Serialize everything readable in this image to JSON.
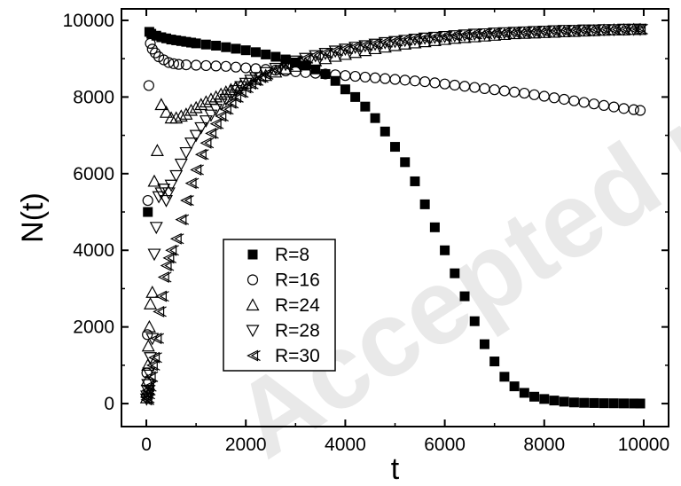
{
  "chart_data": {
    "type": "scatter",
    "xlabel": "t",
    "ylabel": "N(t)",
    "xlim": [
      -500,
      10500
    ],
    "ylim": [
      -600,
      10300
    ],
    "xticks": [
      0,
      2000,
      4000,
      6000,
      8000,
      10000
    ],
    "yticks": [
      0,
      2000,
      4000,
      6000,
      8000,
      10000
    ],
    "xtick_labels": [
      "0",
      "2000",
      "4000",
      "6000",
      "8000",
      "10000"
    ],
    "ytick_labels": [
      "0",
      "2000",
      "4000",
      "6000",
      "8000",
      "10000"
    ],
    "legend_position": "lower-left-center",
    "watermark": "Accepted manuscript",
    "series": [
      {
        "name": "R=8",
        "marker": "square-filled",
        "x": [
          30,
          60,
          100,
          200,
          300,
          400,
          500,
          600,
          700,
          800,
          900,
          1000,
          1200,
          1400,
          1600,
          1800,
          2000,
          2200,
          2400,
          2600,
          2800,
          3000,
          3200,
          3400,
          3600,
          3800,
          4000,
          4200,
          4400,
          4600,
          4800,
          5000,
          5200,
          5400,
          5600,
          5800,
          6000,
          6200,
          6400,
          6600,
          6800,
          7000,
          7200,
          7400,
          7600,
          7800,
          8000,
          8200,
          8400,
          8600,
          8800,
          9000,
          9200,
          9400,
          9600,
          9800,
          9930
        ],
        "y": [
          5000,
          9700,
          9650,
          9600,
          9560,
          9530,
          9500,
          9480,
          9460,
          9440,
          9420,
          9400,
          9370,
          9340,
          9300,
          9260,
          9220,
          9170,
          9110,
          9050,
          8980,
          8900,
          8820,
          8720,
          8600,
          8420,
          8200,
          8000,
          7750,
          7450,
          7100,
          6700,
          6300,
          5800,
          5200,
          4600,
          4000,
          3400,
          2800,
          2150,
          1550,
          1100,
          700,
          450,
          280,
          180,
          120,
          80,
          50,
          30,
          20,
          15,
          10,
          8,
          5,
          3,
          2
        ]
      },
      {
        "name": "R=16",
        "marker": "circle-open",
        "x": [
          10,
          20,
          30,
          50,
          80,
          120,
          180,
          250,
          350,
          450,
          550,
          650,
          800,
          1000,
          1200,
          1400,
          1600,
          1800,
          2000,
          2200,
          2400,
          2600,
          2800,
          3000,
          3200,
          3400,
          3600,
          3800,
          4000,
          4200,
          4400,
          4600,
          4800,
          5000,
          5200,
          5400,
          5600,
          5800,
          6000,
          6200,
          6400,
          6600,
          6800,
          7000,
          7200,
          7400,
          7600,
          7800,
          8000,
          8200,
          8400,
          8600,
          8800,
          9000,
          9200,
          9400,
          9600,
          9800,
          9930
        ],
        "y": [
          800,
          1800,
          5300,
          8300,
          9400,
          9250,
          9150,
          9050,
          8970,
          8900,
          8870,
          8850,
          8840,
          8830,
          8820,
          8810,
          8800,
          8780,
          8760,
          8740,
          8720,
          8700,
          8680,
          8660,
          8640,
          8620,
          8600,
          8580,
          8560,
          8540,
          8520,
          8500,
          8480,
          8460,
          8440,
          8420,
          8400,
          8370,
          8340,
          8310,
          8280,
          8250,
          8220,
          8190,
          8160,
          8130,
          8100,
          8060,
          8020,
          7980,
          7940,
          7900,
          7860,
          7820,
          7780,
          7740,
          7700,
          7670,
          7650
        ]
      },
      {
        "name": "R=24",
        "marker": "triangle-up-open",
        "x": [
          5,
          10,
          20,
          30,
          40,
          60,
          80,
          120,
          160,
          220,
          300,
          400,
          500,
          600,
          700,
          800,
          900,
          1000,
          1100,
          1200,
          1300,
          1400,
          1500,
          1600,
          1700,
          1800,
          1900,
          2000,
          2200,
          2400,
          2600,
          2800,
          3000,
          3200,
          3400,
          3600,
          3800,
          4000,
          4200,
          4400,
          4600,
          4800,
          5000,
          5200,
          5400,
          5600,
          5800,
          6000,
          6200,
          6400,
          6600,
          6800,
          7000,
          7200,
          7400,
          7600,
          7800,
          8000,
          8200,
          8400,
          8600,
          8800,
          9000,
          9200,
          9400,
          9600,
          9800,
          9930
        ],
        "y": [
          150,
          300,
          600,
          1000,
          1500,
          2000,
          2600,
          2900,
          5800,
          6600,
          7800,
          7600,
          7450,
          7450,
          7500,
          7550,
          7650,
          7720,
          7800,
          7870,
          7940,
          8000,
          8070,
          8130,
          8190,
          8250,
          8300,
          8360,
          8460,
          8560,
          8650,
          8730,
          8800,
          8870,
          8940,
          9000,
          9060,
          9110,
          9160,
          9210,
          9260,
          9300,
          9340,
          9380,
          9410,
          9440,
          9470,
          9500,
          9530,
          9550,
          9570,
          9590,
          9610,
          9630,
          9650,
          9660,
          9670,
          9680,
          9690,
          9700,
          9710,
          9720,
          9730,
          9740,
          9750,
          9750,
          9760,
          9760
        ]
      },
      {
        "name": "R=28",
        "marker": "triangle-down-open",
        "x": [
          5,
          10,
          20,
          30,
          50,
          80,
          120,
          160,
          200,
          250,
          300,
          350,
          400,
          450,
          500,
          600,
          700,
          800,
          900,
          1000,
          1100,
          1200,
          1300,
          1400,
          1500,
          1600,
          1700,
          1800,
          1900,
          2000,
          2100,
          2200,
          2400,
          2600,
          2800,
          3000,
          3200,
          3400,
          3600,
          3800,
          4000,
          4200,
          4400,
          4600,
          4800,
          5000,
          5200,
          5400,
          5600,
          5800,
          6000,
          6200,
          6400,
          6600,
          6800,
          7000,
          7200,
          7400,
          7600,
          7800,
          8000,
          8200,
          8400,
          8600,
          8800,
          9000,
          9200,
          9400,
          9600,
          9800,
          9930
        ],
        "y": [
          120,
          200,
          350,
          500,
          800,
          1200,
          1700,
          3900,
          4600,
          5400,
          5500,
          5600,
          5300,
          5500,
          5700,
          5950,
          6250,
          6550,
          6800,
          7000,
          7200,
          7380,
          7530,
          7680,
          7820,
          7940,
          8060,
          8170,
          8270,
          8360,
          8440,
          8510,
          8640,
          8750,
          8850,
          8940,
          9010,
          9080,
          9140,
          9200,
          9250,
          9300,
          9340,
          9380,
          9420,
          9450,
          9480,
          9510,
          9540,
          9560,
          9580,
          9600,
          9620,
          9640,
          9650,
          9670,
          9680,
          9690,
          9700,
          9710,
          9720,
          9730,
          9740,
          9740,
          9750,
          9750,
          9760,
          9760,
          9770,
          9770,
          9770
        ]
      },
      {
        "name": "R=30",
        "marker": "double-triangle-left-open",
        "x": [
          5,
          10,
          20,
          30,
          50,
          80,
          120,
          160,
          200,
          250,
          300,
          350,
          400,
          450,
          500,
          600,
          700,
          800,
          900,
          1000,
          1100,
          1200,
          1300,
          1400,
          1500,
          1600,
          1700,
          1800,
          1900,
          2000,
          2100,
          2200,
          2300,
          2400,
          2600,
          2800,
          3000,
          3200,
          3400,
          3600,
          3800,
          4000,
          4200,
          4400,
          4600,
          4800,
          5000,
          5200,
          5400,
          5600,
          5800,
          6000,
          6200,
          6400,
          6600,
          6800,
          7000,
          7200,
          7400,
          7600,
          7800,
          8000,
          8200,
          8400,
          8600,
          8800,
          9000,
          9200,
          9400,
          9600,
          9800,
          9930
        ],
        "y": [
          100,
          150,
          250,
          350,
          450,
          700,
          1000,
          1200,
          1700,
          2400,
          2800,
          3300,
          3600,
          3800,
          4000,
          4300,
          4800,
          5300,
          5750,
          6100,
          6500,
          6800,
          7050,
          7300,
          7500,
          7680,
          7840,
          7990,
          8120,
          8240,
          8340,
          8430,
          8510,
          8590,
          8720,
          8830,
          8930,
          9010,
          9090,
          9150,
          9210,
          9260,
          9310,
          9350,
          9390,
          9430,
          9460,
          9490,
          9520,
          9540,
          9560,
          9580,
          9600,
          9620,
          9640,
          9650,
          9660,
          9670,
          9680,
          9690,
          9700,
          9710,
          9720,
          9730,
          9740,
          9740,
          9750,
          9750,
          9760,
          9760,
          9770,
          9770
        ]
      }
    ]
  }
}
